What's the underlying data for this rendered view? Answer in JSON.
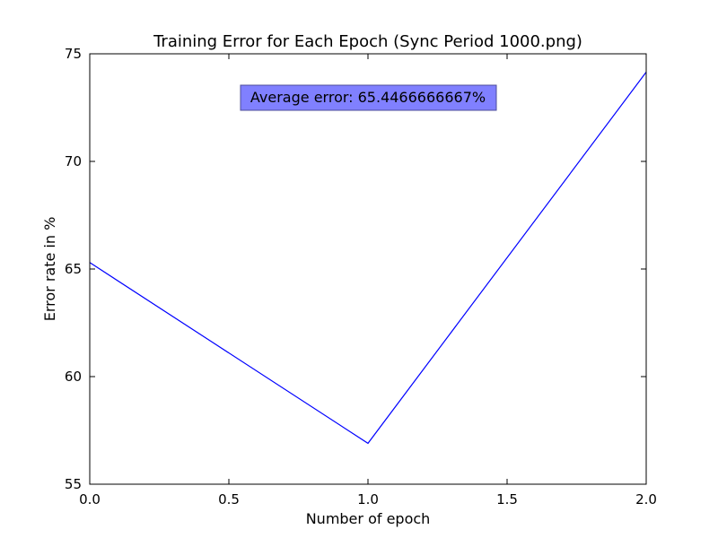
{
  "chart_data": {
    "type": "line",
    "title": "Training Error for Each Epoch (Sync Period 1000.png)",
    "xlabel": "Number of epoch",
    "ylabel": "Error rate in %",
    "xlim": [
      0,
      2
    ],
    "ylim": [
      55,
      75
    ],
    "xticks": [
      0.0,
      0.5,
      1.0,
      1.5,
      2.0
    ],
    "xtick_labels": [
      "0.0",
      "0.5",
      "1.0",
      "1.5",
      "2.0"
    ],
    "yticks": [
      55,
      60,
      65,
      70,
      75
    ],
    "ytick_labels": [
      "55",
      "60",
      "65",
      "70",
      "75"
    ],
    "grid": false,
    "series": [
      {
        "x": [
          0,
          1,
          2
        ],
        "values": [
          65.3,
          56.9,
          74.15
        ],
        "color": "#0000ff"
      }
    ],
    "annotation": {
      "text": "Average error: 65.4466666667%",
      "background": "#8080ff",
      "border": "#4d4d9a"
    }
  }
}
